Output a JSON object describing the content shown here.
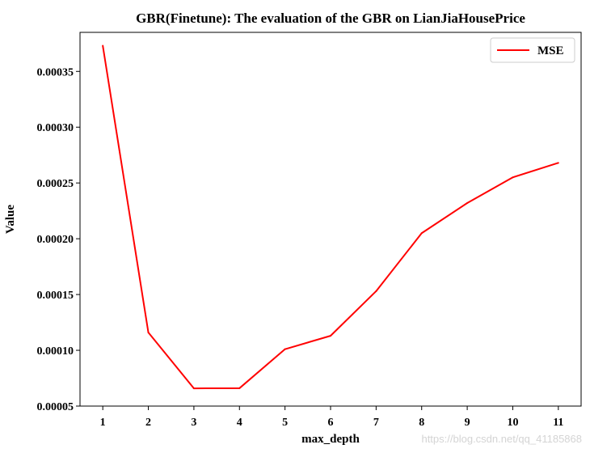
{
  "chart_data": {
    "type": "line",
    "title": "GBR(Finetune): The evaluation of the GBR on LianJiaHousePrice",
    "xlabel": "max_depth",
    "ylabel": "Value",
    "x": [
      1,
      2,
      3,
      4,
      5,
      6,
      7,
      8,
      9,
      10,
      11
    ],
    "xticks": [
      "1",
      "2",
      "3",
      "4",
      "5",
      "6",
      "7",
      "8",
      "9",
      "10",
      "11"
    ],
    "yticks": [
      "0.00005",
      "0.00010",
      "0.00015",
      "0.00020",
      "0.00025",
      "0.00030",
      "0.00035"
    ],
    "ytick_values": [
      5e-05,
      0.0001,
      0.00015,
      0.0002,
      0.00025,
      0.0003,
      0.00035
    ],
    "xlim": [
      0.5,
      11.5
    ],
    "ylim": [
      5e-05,
      0.000385
    ],
    "series": [
      {
        "name": "MSE",
        "color": "#ff0000",
        "values": [
          0.000373,
          0.000116,
          6.59e-05,
          6.6e-05,
          0.000101,
          0.000113,
          0.000153,
          0.000205,
          0.000232,
          0.000255,
          0.000268
        ]
      }
    ],
    "legend_position": "top-right",
    "grid": false
  },
  "watermark": "https://blog.csdn.net/qq_41185868"
}
